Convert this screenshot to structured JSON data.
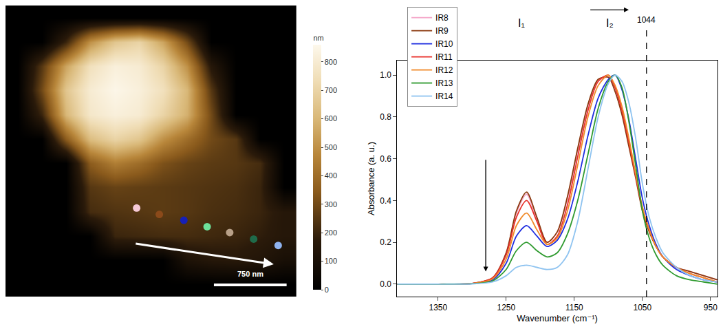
{
  "chart_data": [
    {
      "type": "heatmap",
      "x": [
        125,
        375,
        625,
        875,
        1125,
        1375,
        1625,
        1875,
        2125,
        2375,
        2625,
        2875
      ],
      "y": [
        125,
        375,
        625,
        875,
        1125,
        1375,
        1625,
        1875,
        2125,
        2375,
        2625,
        2875
      ],
      "z": [
        [
          0,
          0,
          0,
          0,
          0,
          0,
          0,
          0,
          0,
          0,
          0,
          0
        ],
        [
          0,
          0,
          200,
          500,
          650,
          700,
          550,
          300,
          0,
          0,
          0,
          0
        ],
        [
          0,
          250,
          550,
          750,
          820,
          800,
          700,
          500,
          150,
          0,
          0,
          0
        ],
        [
          0,
          300,
          650,
          800,
          850,
          820,
          750,
          600,
          250,
          0,
          0,
          0
        ],
        [
          0,
          200,
          600,
          780,
          820,
          800,
          700,
          580,
          300,
          0,
          0,
          0
        ],
        [
          0,
          0,
          350,
          620,
          700,
          650,
          500,
          400,
          300,
          250,
          0,
          0
        ],
        [
          0,
          0,
          0,
          350,
          450,
          400,
          320,
          280,
          260,
          250,
          220,
          0
        ],
        [
          0,
          0,
          0,
          250,
          280,
          270,
          260,
          250,
          240,
          230,
          200,
          0
        ],
        [
          0,
          0,
          0,
          220,
          240,
          250,
          260,
          250,
          230,
          220,
          200,
          150
        ],
        [
          0,
          0,
          0,
          0,
          200,
          210,
          220,
          220,
          210,
          200,
          180,
          150
        ],
        [
          0,
          0,
          0,
          0,
          0,
          0,
          0,
          120,
          150,
          160,
          140,
          100
        ],
        [
          0,
          0,
          0,
          0,
          0,
          0,
          0,
          0,
          0,
          0,
          0,
          0
        ]
      ],
      "xlim": [
        0,
        3000
      ],
      "ylim": [
        3000,
        0
      ],
      "tick_labels": false,
      "colorbar": {
        "range": [
          0,
          860
        ],
        "ticks": [
          0,
          100,
          200,
          300,
          400,
          500,
          600,
          700,
          800
        ],
        "title": "nm"
      },
      "points": {
        "x": [
          1353,
          1587,
          1840,
          2080,
          2313,
          2560,
          2813
        ],
        "y": [
          2087,
          2153,
          2213,
          2280,
          2340,
          2407,
          2473
        ],
        "colors": [
          "#f6c9d6",
          "#8b4a1a",
          "#1620b8",
          "#6de09a",
          "#b8a088",
          "#1f6b4a",
          "#8fb3ef"
        ]
      },
      "scale_bar": {
        "length": 750,
        "label": "750 nm"
      }
    },
    {
      "type": "line",
      "x_label": "Wavenumber (cm⁻¹)",
      "y_label": "Absorbance (a. u.)",
      "x": [
        1410,
        1350,
        1300,
        1270,
        1250,
        1235,
        1220,
        1205,
        1190,
        1175,
        1160,
        1145,
        1130,
        1115,
        1100,
        1090,
        1080,
        1070,
        1060,
        1050,
        1040,
        1030,
        1020,
        1000,
        980,
        960,
        940
      ],
      "series": [
        {
          "name": "IR8",
          "color": "#f4a6c8",
          "values": [
            0,
            0,
            0.003,
            0.03,
            0.15,
            0.34,
            0.43,
            0.31,
            0.2,
            0.25,
            0.41,
            0.64,
            0.85,
            0.97,
            0.99,
            0.93,
            0.82,
            0.67,
            0.52,
            0.36,
            0.26,
            0.18,
            0.13,
            0.08,
            0.06,
            0.04,
            0.02
          ]
        },
        {
          "name": "IR9",
          "color": "#8b3a0f",
          "values": [
            0,
            0,
            0.003,
            0.03,
            0.15,
            0.35,
            0.44,
            0.32,
            0.2,
            0.25,
            0.42,
            0.65,
            0.86,
            0.98,
            0.99,
            0.92,
            0.81,
            0.66,
            0.51,
            0.35,
            0.25,
            0.18,
            0.13,
            0.08,
            0.06,
            0.04,
            0.02
          ]
        },
        {
          "name": "IR10",
          "color": "#1f2ee0",
          "values": [
            0,
            0,
            0.002,
            0.02,
            0.1,
            0.23,
            0.28,
            0.23,
            0.18,
            0.21,
            0.31,
            0.49,
            0.71,
            0.89,
            0.98,
            1.0,
            0.93,
            0.79,
            0.6,
            0.41,
            0.28,
            0.19,
            0.13,
            0.07,
            0.04,
            0.02,
            0.01
          ]
        },
        {
          "name": "IR11",
          "color": "#e8312b",
          "values": [
            0,
            0,
            0.003,
            0.03,
            0.14,
            0.32,
            0.4,
            0.3,
            0.19,
            0.23,
            0.38,
            0.61,
            0.83,
            0.97,
            1.0,
            0.94,
            0.83,
            0.68,
            0.52,
            0.36,
            0.26,
            0.18,
            0.13,
            0.08,
            0.05,
            0.03,
            0.01
          ]
        },
        {
          "name": "IR12",
          "color": "#f08a2a",
          "values": [
            0,
            0,
            0.003,
            0.025,
            0.12,
            0.28,
            0.34,
            0.26,
            0.19,
            0.22,
            0.35,
            0.57,
            0.8,
            0.95,
            1.0,
            0.95,
            0.85,
            0.7,
            0.53,
            0.37,
            0.26,
            0.18,
            0.13,
            0.08,
            0.05,
            0.03,
            0.01
          ]
        },
        {
          "name": "IR13",
          "color": "#2e9a2e",
          "values": [
            0,
            0,
            0.002,
            0.015,
            0.07,
            0.16,
            0.2,
            0.16,
            0.13,
            0.15,
            0.24,
            0.4,
            0.62,
            0.84,
            0.97,
            1.0,
            0.94,
            0.78,
            0.57,
            0.35,
            0.22,
            0.14,
            0.09,
            0.04,
            0.02,
            0.01,
            0
          ]
        },
        {
          "name": "IR14",
          "color": "#8ec3f0",
          "values": [
            0,
            0,
            0.001,
            0.01,
            0.04,
            0.08,
            0.09,
            0.08,
            0.07,
            0.08,
            0.14,
            0.3,
            0.55,
            0.8,
            0.96,
            1.0,
            0.97,
            0.87,
            0.7,
            0.48,
            0.32,
            0.22,
            0.15,
            0.08,
            0.04,
            0.02,
            0.01
          ]
        }
      ],
      "xlim": [
        1410,
        940
      ],
      "xticks": [
        1350,
        1250,
        1150,
        1050,
        950
      ],
      "ylim": [
        -0.06,
        1.07
      ],
      "yticks": [
        {
          "value": 0,
          "label": "0.0"
        },
        {
          "value": 0.2,
          "label": "0.2"
        },
        {
          "value": 0.4,
          "label": "0.4"
        },
        {
          "value": 0.6,
          "label": "0.6"
        },
        {
          "value": 0.8,
          "label": "0.8"
        },
        {
          "value": 1,
          "label": "1.0"
        }
      ],
      "legend": "top-left",
      "grid": false,
      "annotations": [
        {
          "text": "I₁",
          "x": 1228
        },
        {
          "text": "I₂",
          "x": 1098
        }
      ],
      "vline": {
        "x": 1044,
        "label": "1044"
      }
    }
  ]
}
